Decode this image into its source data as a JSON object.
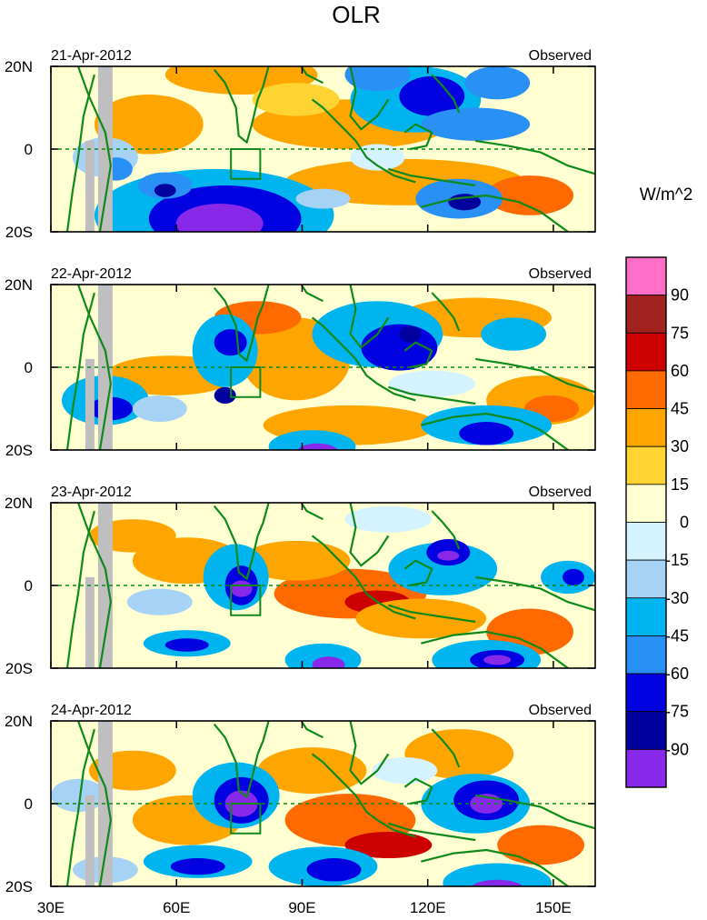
{
  "title": "OLR",
  "units": "W/m^2",
  "panels": [
    {
      "date": "21-Apr-2012",
      "label": "Observed"
    },
    {
      "date": "22-Apr-2012",
      "label": "Observed"
    },
    {
      "date": "23-Apr-2012",
      "label": "Observed"
    },
    {
      "date": "24-Apr-2012",
      "label": "Observed"
    }
  ],
  "y_ticks": [
    "20N",
    "0",
    "20S"
  ],
  "x_ticks": [
    "30E",
    "60E",
    "90E",
    "120E",
    "150E"
  ],
  "colorbar": {
    "colors": [
      "#ff6ec7",
      "#a2221f",
      "#cc0000",
      "#ff6a00",
      "#ffa500",
      "#ffd432",
      "#ffffd2",
      "#d4f2ff",
      "#a6d2f5",
      "#00b4ef",
      "#2990f5",
      "#0000e0",
      "#00009e",
      "#8829ea"
    ],
    "labels": [
      "90",
      "75",
      "60",
      "45",
      "30",
      "15",
      "0",
      "-15",
      "-30",
      "-45",
      "-60",
      "-75",
      "-90"
    ]
  },
  "coast_color": "#0f8a1a",
  "land_mask_color": "#bfbfbf"
}
